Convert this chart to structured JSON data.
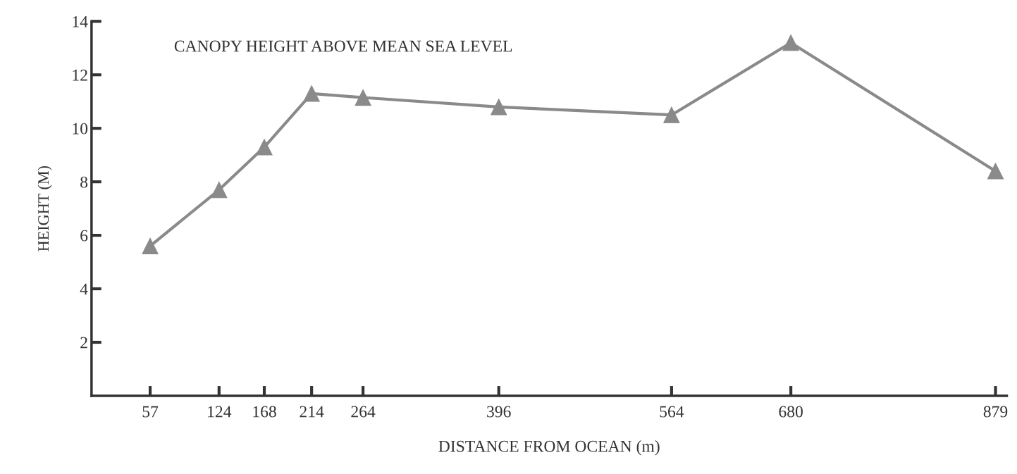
{
  "chart_data": {
    "type": "line",
    "title": "CANOPY HEIGHT ABOVE MEAN SEA LEVEL",
    "xlabel": "DISTANCE FROM OCEAN (m)",
    "ylabel": "HEIGHT (M)",
    "x": [
      57,
      124,
      168,
      214,
      264,
      396,
      564,
      680,
      879
    ],
    "series": [
      {
        "color": "#8a8a8a",
        "values": [
          5.6,
          7.7,
          9.3,
          11.3,
          11.15,
          10.8,
          10.5,
          13.2,
          8.4
        ]
      }
    ],
    "xlim": [
      0,
      890
    ],
    "xticks": [
      57,
      124,
      168,
      214,
      264,
      396,
      564,
      680,
      879
    ],
    "ylim": [
      0,
      14
    ],
    "yticks": [
      2,
      4,
      6,
      8,
      10,
      12,
      14
    ],
    "marker": "triangle",
    "line_style": "solid",
    "grid": false,
    "legend": false
  }
}
